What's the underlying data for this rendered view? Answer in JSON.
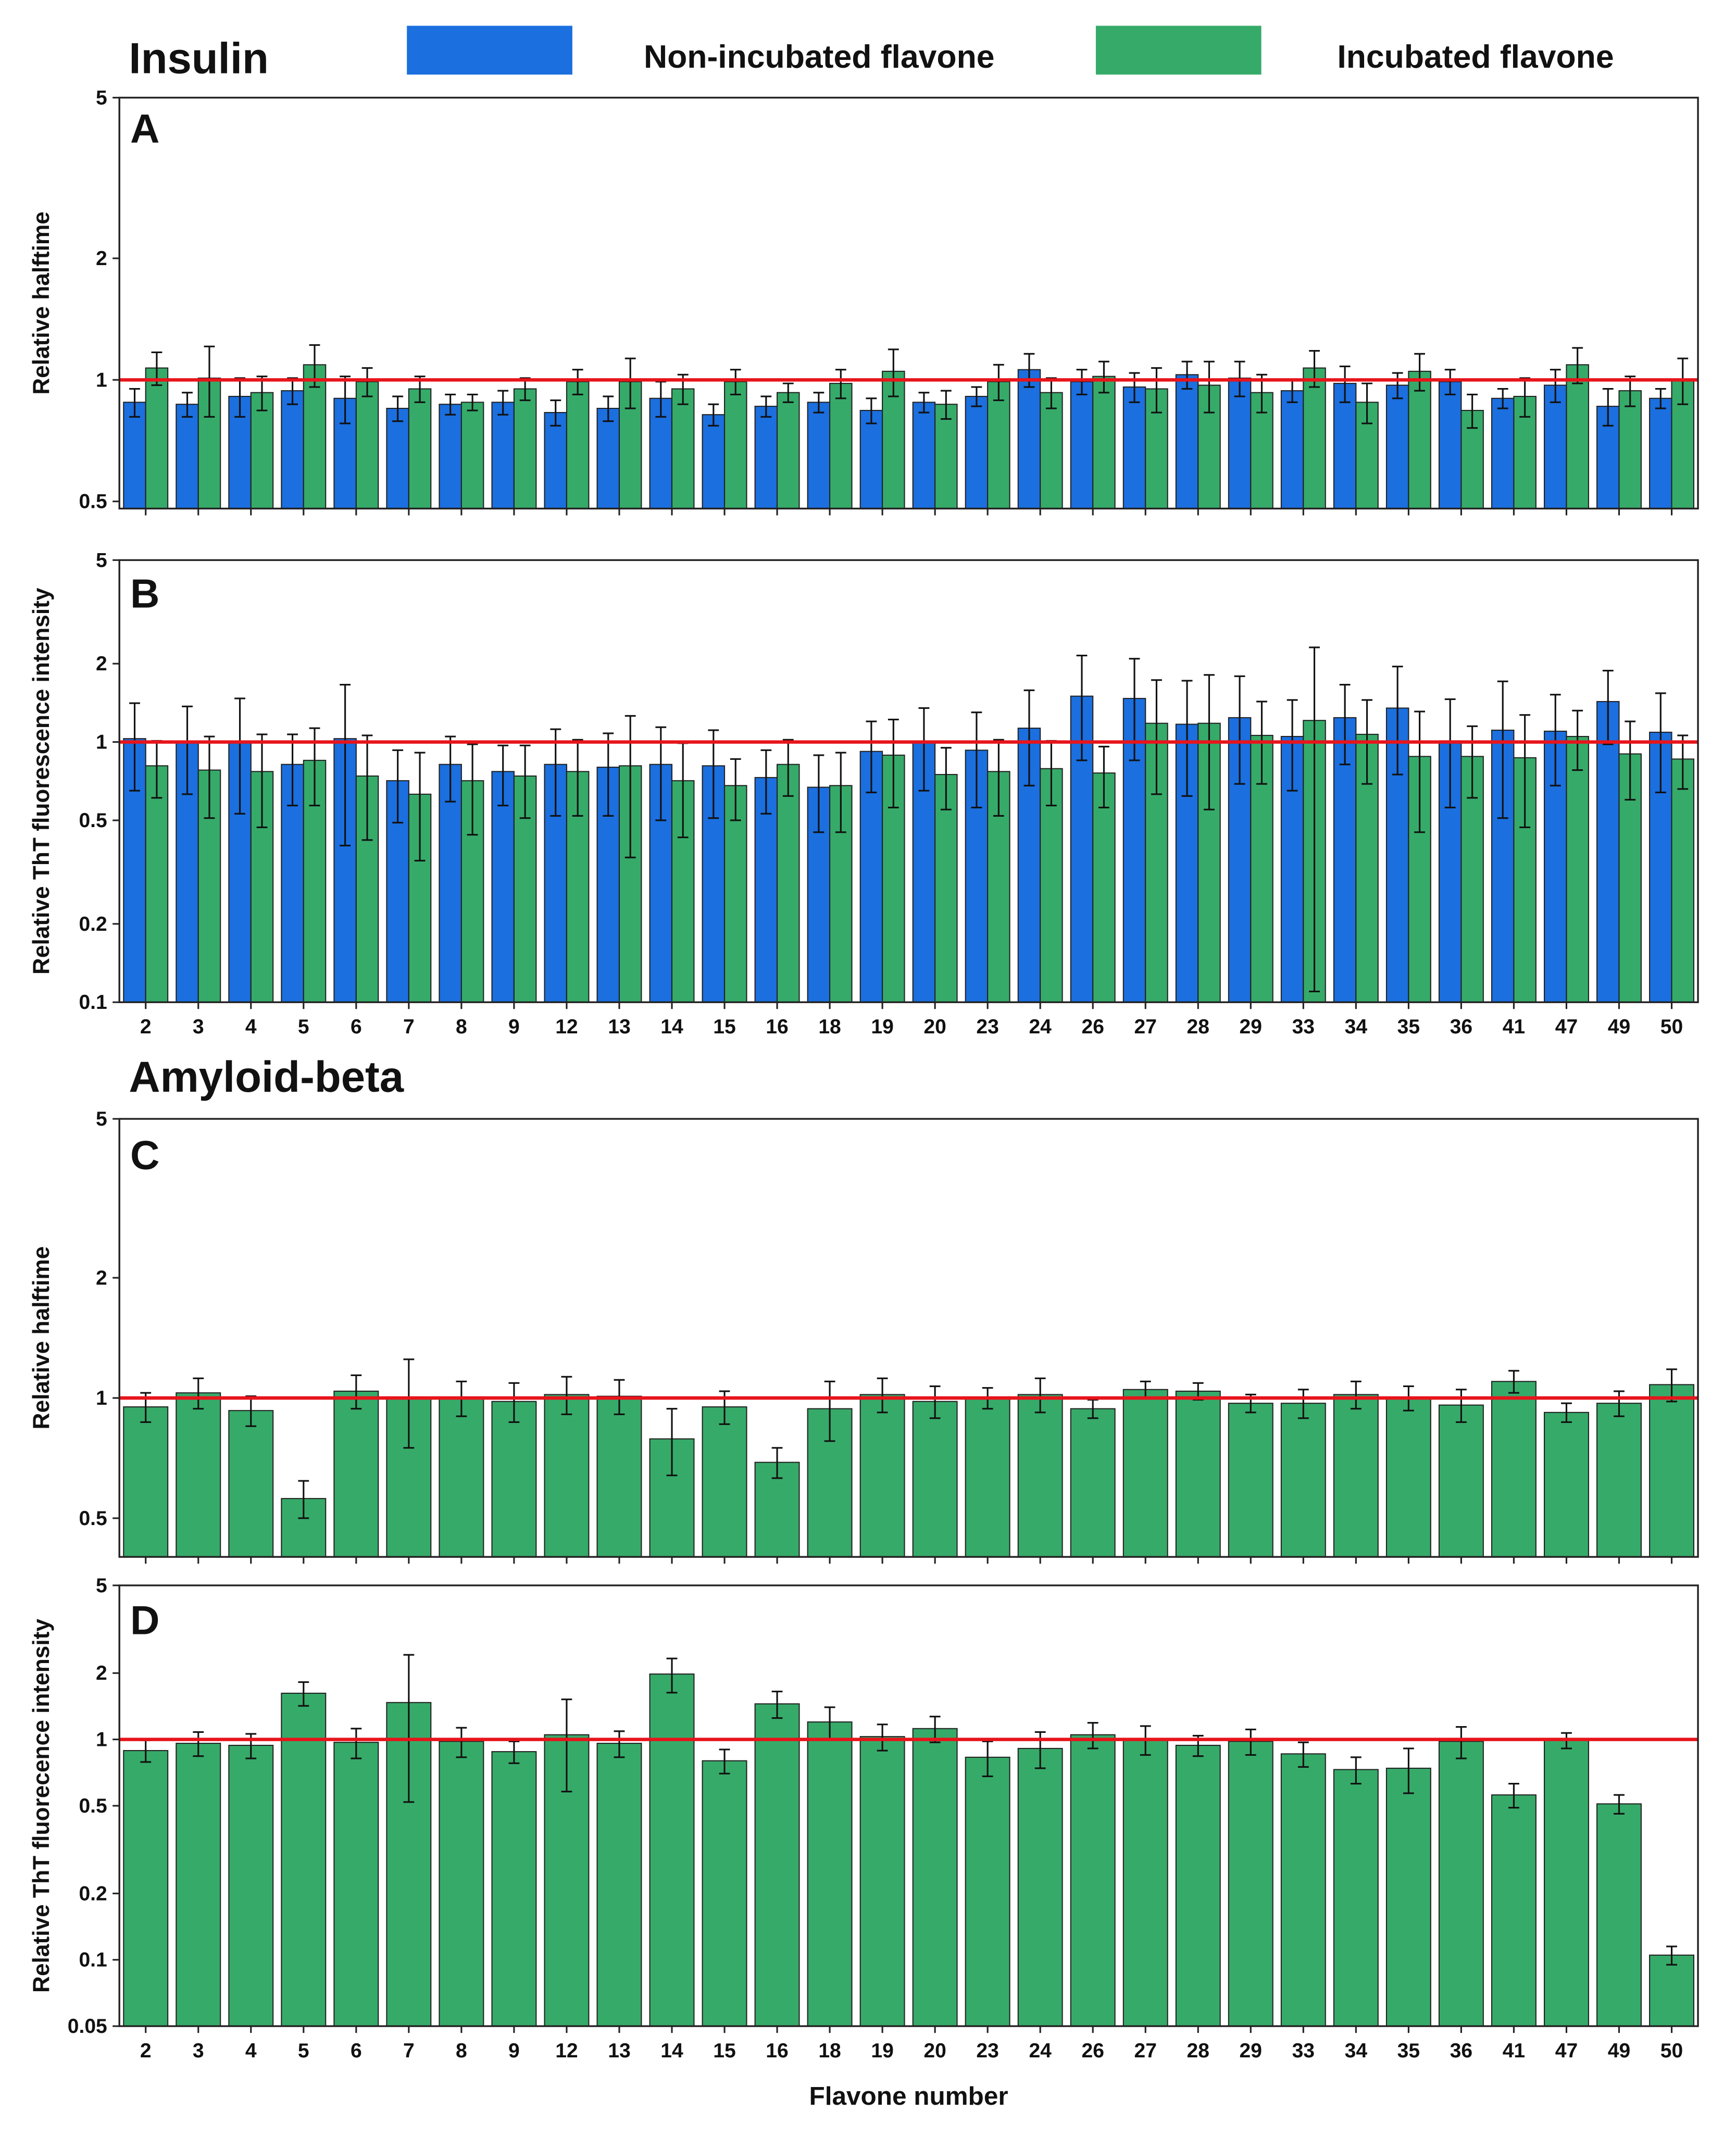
{
  "chart_data": [
    {
      "type": "bar",
      "title": "Insulin",
      "panel": "A",
      "ylabel": "Relative halftime",
      "log": true,
      "reference_line": 1,
      "ylim": [
        0.48,
        5
      ],
      "yticks": [
        0.5,
        1,
        2,
        5
      ],
      "series": [
        {
          "name": "Non-incubated flavone",
          "color": "#1b6fdf",
          "values": [
            0.88,
            0.87,
            0.91,
            0.94,
            0.9,
            0.85,
            0.87,
            0.88,
            0.83,
            0.85,
            0.9,
            0.82,
            0.86,
            0.88,
            0.84,
            0.88,
            0.91,
            1.06,
            0.99,
            0.96,
            1.03,
            1.01,
            0.94,
            0.98,
            0.97,
            0.99,
            0.9,
            0.97,
            0.86,
            0.9
          ],
          "errors": [
            0.07,
            0.06,
            0.1,
            0.07,
            0.12,
            0.06,
            0.05,
            0.06,
            0.06,
            0.06,
            0.09,
            0.05,
            0.05,
            0.05,
            0.06,
            0.05,
            0.05,
            0.1,
            0.07,
            0.08,
            0.08,
            0.1,
            0.06,
            0.1,
            0.07,
            0.07,
            0.05,
            0.09,
            0.09,
            0.05
          ]
        },
        {
          "name": "Incubated flavone",
          "color": "#36ab69",
          "values": [
            1.07,
            1.01,
            0.93,
            1.09,
            0.99,
            0.95,
            0.88,
            0.95,
            0.99,
            0.99,
            0.95,
            0.99,
            0.93,
            0.98,
            1.05,
            0.87,
            0.99,
            0.93,
            1.02,
            0.95,
            0.97,
            0.93,
            1.07,
            0.88,
            1.05,
            0.84,
            0.91,
            1.09,
            0.94,
            1.0
          ],
          "errors": [
            0.1,
            0.2,
            0.09,
            0.13,
            0.08,
            0.07,
            0.04,
            0.06,
            0.07,
            0.14,
            0.08,
            0.07,
            0.05,
            0.08,
            0.14,
            0.07,
            0.1,
            0.08,
            0.09,
            0.12,
            0.14,
            0.1,
            0.11,
            0.1,
            0.11,
            0.08,
            0.1,
            0.11,
            0.08,
            0.13
          ]
        }
      ]
    },
    {
      "type": "bar",
      "panel": "B",
      "ylabel": "Relative ThT fluorescence intensity",
      "log": true,
      "reference_line": 1,
      "ylim": [
        0.1,
        5
      ],
      "yticks": [
        0.1,
        0.2,
        0.5,
        1,
        2,
        5
      ],
      "categories": [
        "2",
        "3",
        "4",
        "5",
        "6",
        "7",
        "8",
        "9",
        "12",
        "13",
        "14",
        "15",
        "16",
        "18",
        "19",
        "20",
        "23",
        "24",
        "26",
        "27",
        "28",
        "29",
        "33",
        "34",
        "35",
        "36",
        "41",
        "47",
        "49",
        "50"
      ],
      "series": [
        {
          "name": "Non-incubated flavone",
          "color": "#1b6fdf",
          "values": [
            1.03,
            1.0,
            1.0,
            0.82,
            1.03,
            0.71,
            0.82,
            0.77,
            0.82,
            0.8,
            0.82,
            0.81,
            0.73,
            0.67,
            0.92,
            1.0,
            0.93,
            1.13,
            1.5,
            1.47,
            1.17,
            1.24,
            1.05,
            1.24,
            1.35,
            1.01,
            1.11,
            1.1,
            1.43,
            1.09
          ],
          "errors": [
            0.38,
            0.37,
            0.47,
            0.25,
            0.63,
            0.22,
            0.23,
            0.2,
            0.3,
            0.28,
            0.32,
            0.3,
            0.2,
            0.22,
            0.28,
            0.35,
            0.37,
            0.45,
            0.65,
            0.62,
            0.55,
            0.55,
            0.4,
            0.42,
            0.6,
            0.45,
            0.6,
            0.42,
            0.45,
            0.45
          ]
        },
        {
          "name": "Incubated flavone",
          "color": "#36ab69",
          "values": [
            0.81,
            0.78,
            0.77,
            0.85,
            0.74,
            0.63,
            0.71,
            0.74,
            0.77,
            0.81,
            0.71,
            0.68,
            0.82,
            0.68,
            0.89,
            0.75,
            0.77,
            0.79,
            0.76,
            1.18,
            1.18,
            1.06,
            1.21,
            1.07,
            0.88,
            0.88,
            0.87,
            1.05,
            0.9,
            0.86
          ],
          "errors": [
            0.2,
            0.27,
            0.3,
            0.28,
            0.32,
            0.28,
            0.27,
            0.23,
            0.25,
            0.45,
            0.28,
            0.18,
            0.2,
            0.23,
            0.33,
            0.2,
            0.25,
            0.22,
            0.2,
            0.55,
            0.63,
            0.37,
            1.1,
            0.38,
            0.43,
            0.27,
            0.4,
            0.27,
            0.3,
            0.2
          ]
        }
      ]
    },
    {
      "type": "bar",
      "title": "Amyloid-beta",
      "panel": "C",
      "ylabel": "Relative halftime",
      "log": true,
      "reference_line": 1,
      "ylim": [
        0.4,
        5
      ],
      "yticks": [
        0.5,
        1,
        2,
        5
      ],
      "series": [
        {
          "color": "#36ab69",
          "values": [
            0.95,
            1.03,
            0.93,
            0.56,
            1.04,
            1.0,
            1.0,
            0.98,
            1.02,
            1.01,
            0.79,
            0.95,
            0.69,
            0.94,
            1.02,
            0.98,
            1.0,
            1.02,
            0.94,
            1.05,
            1.04,
            0.97,
            0.97,
            1.02,
            1.0,
            0.96,
            1.1,
            0.92,
            0.97,
            1.08
          ],
          "errors": [
            0.08,
            0.09,
            0.08,
            0.06,
            0.1,
            0.25,
            0.1,
            0.11,
            0.11,
            0.1,
            0.15,
            0.09,
            0.06,
            0.16,
            0.1,
            0.09,
            0.06,
            0.1,
            0.05,
            0.05,
            0.05,
            0.05,
            0.08,
            0.08,
            0.07,
            0.09,
            0.07,
            0.05,
            0.07,
            0.1
          ]
        }
      ]
    },
    {
      "type": "bar",
      "panel": "D",
      "ylabel": "Relative ThT fluorecence intensity",
      "xlabel": "Flavone number",
      "log": true,
      "reference_line": 1,
      "ylim": [
        0.05,
        5
      ],
      "yticks": [
        0.05,
        0.1,
        0.2,
        0.5,
        1,
        2,
        5
      ],
      "categories": [
        "2",
        "3",
        "4",
        "5",
        "6",
        "7",
        "8",
        "9",
        "12",
        "13",
        "14",
        "15",
        "16",
        "18",
        "19",
        "20",
        "23",
        "24",
        "26",
        "27",
        "28",
        "29",
        "33",
        "34",
        "35",
        "36",
        "41",
        "47",
        "49",
        "50"
      ],
      "series": [
        {
          "color": "#36ab69",
          "values": [
            0.89,
            0.96,
            0.94,
            1.62,
            0.97,
            1.47,
            0.98,
            0.88,
            1.05,
            0.96,
            1.98,
            0.8,
            1.45,
            1.2,
            1.03,
            1.12,
            0.83,
            0.91,
            1.05,
            1.0,
            0.94,
            0.98,
            0.86,
            0.73,
            0.74,
            0.98,
            0.56,
            0.99,
            0.51,
            0.105
          ],
          "errors": [
            0.1,
            0.12,
            0.12,
            0.2,
            0.15,
            0.95,
            0.15,
            0.1,
            0.47,
            0.13,
            0.35,
            0.1,
            0.2,
            0.2,
            0.14,
            0.15,
            0.15,
            0.17,
            0.14,
            0.15,
            0.1,
            0.13,
            0.11,
            0.1,
            0.17,
            0.16,
            0.07,
            0.08,
            0.05,
            0.01
          ]
        }
      ]
    }
  ]
}
